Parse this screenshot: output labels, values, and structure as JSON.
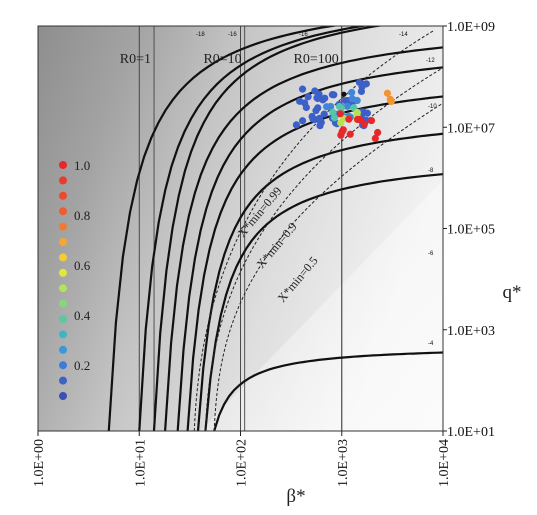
{
  "chart_data": {
    "type": "contour",
    "x_axis": {
      "label": "β*",
      "scale": "log",
      "range": [
        1,
        10000
      ],
      "tick_values": [
        1,
        10,
        100,
        1000,
        10000
      ],
      "tick_labels": [
        "1.0E+00",
        "1.0E+01",
        "1.0E+02",
        "1.0E+03",
        "1.0E+04"
      ]
    },
    "y_axis": {
      "label": "q*",
      "scale": "log",
      "range": [
        10,
        1000000000
      ],
      "tick_values": [
        10,
        1000,
        100000,
        10000000,
        1000000000
      ],
      "tick_labels": [
        "1.0E+01",
        "1.0E+03",
        "1.0E+05",
        "1.0E+07",
        "1.0E+09"
      ]
    },
    "grid": "vertical",
    "r0_lines": [
      {
        "label": "R0=1",
        "beta": 14
      },
      {
        "label": "R0=10",
        "beta": 110
      },
      {
        "label": "R0=100",
        "beta": 1000
      }
    ],
    "contours": [
      {
        "label": "-4",
        "asymptote_beta": 55,
        "plateau_q": 500
      },
      {
        "label": "-6",
        "asymptote_beta": 45,
        "plateau_q": 3500000
      },
      {
        "label": "-8",
        "asymptote_beta": 38,
        "plateau_q": 25000000
      },
      {
        "label": "-10",
        "asymptote_beta": 30,
        "plateau_q": 150000000
      },
      {
        "label": "-12",
        "asymptote_beta": 24,
        "plateau_q": 600000000
      },
      {
        "label": "-14",
        "asymptote_beta": 18,
        "plateau_q": 1500000000
      },
      {
        "label": "-16",
        "asymptote_beta": 14,
        "plateau_q": null
      },
      {
        "label": "-16",
        "asymptote_beta": 10,
        "plateau_q": null
      },
      {
        "label": "-18",
        "asymptote_beta": 5,
        "plateau_q": null
      }
    ],
    "xmin_lines": [
      {
        "label": "X*min=0.99",
        "start_beta": 35,
        "end": [
          8000,
          800000000
        ]
      },
      {
        "label": "X*min=0.9",
        "start_beta": 45,
        "end": [
          10000,
          150000000
        ]
      },
      {
        "label": "X*min=0.5",
        "start_beta": 55,
        "end": [
          10000,
          30000000
        ]
      }
    ],
    "legend": {
      "position": "left",
      "labels": [
        "1.0",
        "0.8",
        "0.6",
        "0.4",
        "0.2"
      ],
      "swatch_colors": [
        "#e8272a",
        "#ea3a2c",
        "#ec4a2e",
        "#ee5c30",
        "#f17a32",
        "#f5a634",
        "#f2cc3a",
        "#e1e63f",
        "#b4e25a",
        "#86d77b",
        "#5bc8a1",
        "#3fb4c6",
        "#3c97d8",
        "#3d7bd8",
        "#3c63c4",
        "#3b51b4"
      ]
    },
    "scatter": {
      "description_colors": [
        "#3d5fc8",
        "#3f86d8",
        "#55c4a8",
        "#b8e04f",
        "#f0c839",
        "#f39433",
        "#e8272a"
      ],
      "point_groups": [
        {
          "color": "#3d5fc8",
          "beta_range": [
            350,
            1800
          ],
          "q_range": [
            10000000,
            80000000
          ],
          "count": 48
        },
        {
          "color": "#3f86d8",
          "beta_range": [
            700,
            1500
          ],
          "q_range": [
            15000000,
            50000000
          ],
          "count": 10
        },
        {
          "color": "#55c4a8",
          "beta_range": [
            800,
            1500
          ],
          "q_range": [
            14000000,
            30000000
          ],
          "count": 6
        },
        {
          "color": "#b8e04f",
          "beta_range": [
            900,
            1500
          ],
          "q_range": [
            12000000,
            25000000
          ],
          "count": 5
        },
        {
          "color": "#f39433",
          "beta_range": [
            2300,
            3200
          ],
          "q_range": [
            20000000,
            50000000
          ],
          "count": 3
        },
        {
          "color": "#e8272a",
          "beta_range": [
            900,
            2500
          ],
          "q_range": [
            6000000,
            20000000
          ],
          "count": 12
        },
        {
          "color": "#111111",
          "beta_range": [
            1050,
            1050
          ],
          "q_range": [
            45000000,
            45000000
          ],
          "count": 1
        }
      ]
    }
  }
}
